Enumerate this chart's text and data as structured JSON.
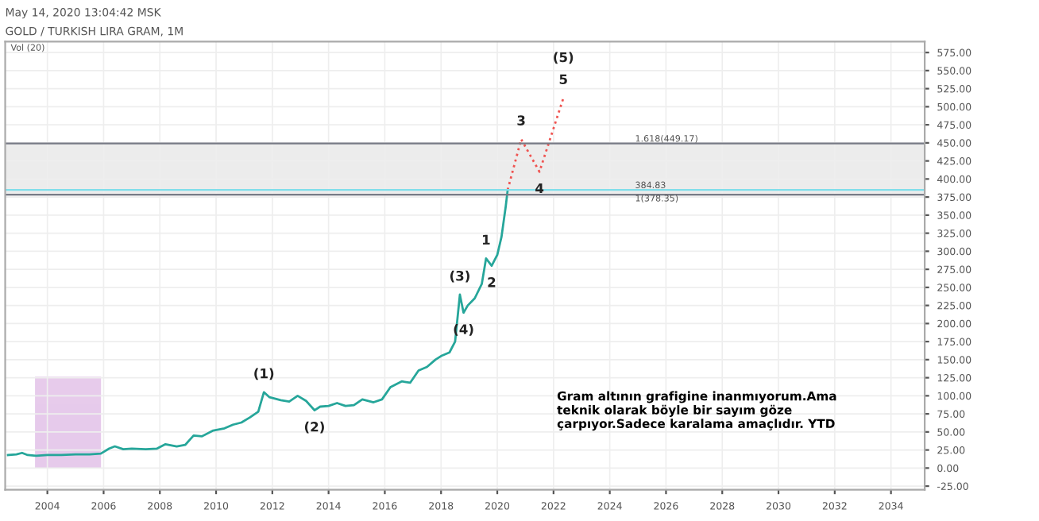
{
  "chart_data": {
    "type": "line",
    "title": "GOLD / TURKISH LIRA GRAM, 1M",
    "subtitle": "May 14, 2020 13:04:42 MSK",
    "x": [
      2002.6,
      2002.9,
      2003.1,
      2003.3,
      2003.6,
      2004.0,
      2004.5,
      2005.0,
      2005.5,
      2005.9,
      2006.2,
      2006.4,
      2006.7,
      2007.0,
      2007.5,
      2007.9,
      2008.2,
      2008.6,
      2008.9,
      2009.2,
      2009.5,
      2009.9,
      2010.3,
      2010.6,
      2010.9,
      2011.2,
      2011.5,
      2011.7,
      2011.9,
      2012.3,
      2012.6,
      2012.9,
      2013.2,
      2013.5,
      2013.7,
      2014.0,
      2014.3,
      2014.6,
      2014.9,
      2015.2,
      2015.6,
      2015.9,
      2016.2,
      2016.6,
      2016.9,
      2017.2,
      2017.5,
      2017.8,
      2018.0,
      2018.3,
      2018.5,
      2018.67,
      2018.8,
      2018.95,
      2019.2,
      2019.45,
      2019.6,
      2019.8,
      2020.0,
      2020.15,
      2020.3,
      2020.37
    ],
    "series": [
      {
        "color": "#26a69a",
        "values": [
          18,
          19,
          21,
          18,
          17,
          18,
          18,
          19,
          19,
          20,
          27,
          30,
          26,
          27,
          26,
          27,
          33,
          30,
          32,
          45,
          44,
          52,
          55,
          60,
          63,
          70,
          78,
          105,
          98,
          94,
          92,
          100,
          93,
          80,
          85,
          86,
          90,
          86,
          87,
          95,
          91,
          95,
          112,
          120,
          118,
          135,
          140,
          150,
          155,
          160,
          175,
          240,
          215,
          225,
          235,
          255,
          290,
          280,
          295,
          320,
          362,
          385
        ]
      },
      {
        "type": "line",
        "color": "#ef5350",
        "line_style": "dotted",
        "x": [
          2020.37,
          2020.85,
          2021.5,
          2022.35
        ],
        "values": [
          385,
          455,
          410,
          512
        ]
      }
    ],
    "xlim": [
      2002.5,
      2035.2
    ],
    "xticks": [
      2004,
      2006,
      2008,
      2010,
      2012,
      2014,
      2016,
      2018,
      2020,
      2022,
      2024,
      2026,
      2028,
      2030,
      2032,
      2034
    ],
    "ylim": [
      -30,
      590
    ],
    "yticks": [
      {
        "value": -25,
        "label": "-25.00"
      },
      {
        "value": 0,
        "label": "0.00"
      },
      {
        "value": 25,
        "label": "25.00"
      },
      {
        "value": 50,
        "label": "50.00"
      },
      {
        "value": 75,
        "label": "75.00"
      },
      {
        "value": 100,
        "label": "100.00"
      },
      {
        "value": 125,
        "label": "125.00"
      },
      {
        "value": 150,
        "label": "150.00"
      },
      {
        "value": 175,
        "label": "175.00"
      },
      {
        "value": 200,
        "label": "200.00"
      },
      {
        "value": 225,
        "label": "225.00"
      },
      {
        "value": 250,
        "label": "250.00"
      },
      {
        "value": 275,
        "label": "275.00"
      },
      {
        "value": 300,
        "label": "300.00"
      },
      {
        "value": 325,
        "label": "325.00"
      },
      {
        "value": 350,
        "label": "350.00"
      },
      {
        "value": 375,
        "label": "375.00"
      },
      {
        "value": 400,
        "label": "400.00"
      },
      {
        "value": 425,
        "label": "425.00"
      },
      {
        "value": 450,
        "label": "450.00"
      },
      {
        "value": 475,
        "label": "475.00"
      },
      {
        "value": 500,
        "label": "500.00"
      },
      {
        "value": 525,
        "label": "525.00"
      },
      {
        "value": 550,
        "label": "550.00"
      },
      {
        "value": 575,
        "label": "575.00"
      }
    ],
    "grid": true,
    "legend": false,
    "ref_lines": [
      {
        "axis": "y",
        "value": 378.35,
        "label": "1(378.35)",
        "color": "#787b86"
      },
      {
        "axis": "y",
        "value": 449.17,
        "label": "1.618(449.17)",
        "color": "#787b86"
      },
      {
        "axis": "y",
        "value": 384.83,
        "label": "384.83",
        "color": "#80deea"
      }
    ],
    "bands": [
      {
        "axis": "y",
        "from": 378.35,
        "to": 449.17,
        "color": "#e0e0e0"
      },
      {
        "axis": "x",
        "from": 2003.6,
        "to": 2005.87,
        "color": "#e1bee7"
      }
    ],
    "annotations": [
      {
        "text": "(1)",
        "x": 2011.7,
        "y": 105
      },
      {
        "text": "(2)",
        "x": 2013.5,
        "y": 80
      },
      {
        "text": "(3)",
        "x": 2018.67,
        "y": 240
      },
      {
        "text": "(4)",
        "x": 2018.8,
        "y": 215
      },
      {
        "text": "1",
        "x": 2019.6,
        "y": 290
      },
      {
        "text": "2",
        "x": 2019.8,
        "y": 280
      },
      {
        "text": "3",
        "x": 2020.85,
        "y": 455
      },
      {
        "text": "4",
        "x": 2021.5,
        "y": 410
      },
      {
        "text": "5",
        "x": 2022.35,
        "y": 512
      },
      {
        "text": "(5)",
        "x": 2022.35,
        "y": 512
      },
      "Vol (20)",
      "Gram altının grafigine inanmıyorum.Ama teknik olarak böyle bir sayım göze çarpıyor.Sadece karalama amaçlıdır. YTD"
    ]
  }
}
